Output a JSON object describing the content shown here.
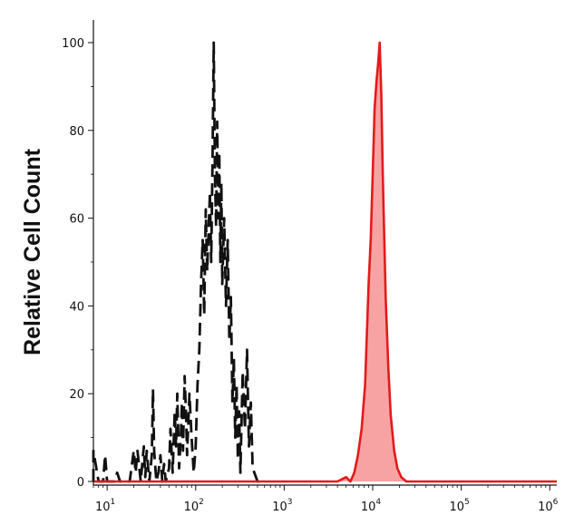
{
  "chart_data": {
    "type": "line",
    "title": "",
    "xlabel": "",
    "ylabel": "Relative Cell Count",
    "x_scale": "log",
    "xlim": [
      7,
      1200000
    ],
    "ylim": [
      0,
      100
    ],
    "x_ticks": [
      {
        "value": 10,
        "base": "10",
        "exp": "1"
      },
      {
        "value": 100,
        "base": "10",
        "exp": "2"
      },
      {
        "value": 1000,
        "base": "10",
        "exp": "3"
      },
      {
        "value": 10000,
        "base": "10",
        "exp": "4"
      },
      {
        "value": 100000,
        "base": "10",
        "exp": "5"
      },
      {
        "value": 1000000,
        "base": "10",
        "exp": "6"
      }
    ],
    "y_ticks": [
      0,
      20,
      40,
      60,
      80,
      100
    ],
    "grid": false,
    "colors": {
      "control": "#111111",
      "stained_line": "#e21b1b",
      "stained_fill": "#f7a3a3"
    },
    "series": [
      {
        "style": "dashed",
        "color": "#111111",
        "points": [
          [
            7,
            0
          ],
          [
            7,
            7
          ],
          [
            8,
            0
          ],
          [
            9,
            0
          ],
          [
            9.5,
            6
          ],
          [
            10,
            0
          ],
          [
            12,
            0
          ],
          [
            13,
            2
          ],
          [
            14,
            0
          ],
          [
            18,
            0
          ],
          [
            20,
            7
          ],
          [
            21,
            2
          ],
          [
            22,
            7
          ],
          [
            24,
            0
          ],
          [
            26,
            8
          ],
          [
            27,
            1
          ],
          [
            28,
            7
          ],
          [
            30,
            0
          ],
          [
            32,
            6
          ],
          [
            33,
            21
          ],
          [
            34,
            7
          ],
          [
            36,
            0
          ],
          [
            38,
            2
          ],
          [
            40,
            6
          ],
          [
            42,
            0
          ],
          [
            44,
            4
          ],
          [
            46,
            0
          ],
          [
            50,
            3
          ],
          [
            52,
            12
          ],
          [
            55,
            2
          ],
          [
            58,
            16
          ],
          [
            60,
            8
          ],
          [
            62,
            20
          ],
          [
            65,
            3
          ],
          [
            68,
            10
          ],
          [
            70,
            18
          ],
          [
            72,
            7
          ],
          [
            75,
            24
          ],
          [
            78,
            15
          ],
          [
            80,
            6
          ],
          [
            85,
            20
          ],
          [
            90,
            10
          ],
          [
            95,
            2
          ],
          [
            100,
            8
          ],
          [
            105,
            22
          ],
          [
            110,
            30
          ],
          [
            115,
            45
          ],
          [
            120,
            55
          ],
          [
            125,
            38
          ],
          [
            130,
            62
          ],
          [
            135,
            48
          ],
          [
            140,
            57
          ],
          [
            145,
            66
          ],
          [
            150,
            50
          ],
          [
            155,
            72
          ],
          [
            160,
            100
          ],
          [
            165,
            70
          ],
          [
            170,
            58
          ],
          [
            175,
            82
          ],
          [
            180,
            60
          ],
          [
            185,
            75
          ],
          [
            190,
            50
          ],
          [
            195,
            68
          ],
          [
            200,
            45
          ],
          [
            210,
            60
          ],
          [
            220,
            40
          ],
          [
            230,
            55
          ],
          [
            240,
            32
          ],
          [
            250,
            42
          ],
          [
            260,
            18
          ],
          [
            270,
            28
          ],
          [
            280,
            10
          ],
          [
            290,
            22
          ],
          [
            300,
            5
          ],
          [
            310,
            16
          ],
          [
            320,
            2
          ],
          [
            340,
            25
          ],
          [
            360,
            12
          ],
          [
            380,
            30
          ],
          [
            400,
            8
          ],
          [
            420,
            18
          ],
          [
            440,
            3
          ],
          [
            460,
            2
          ],
          [
            500,
            0
          ],
          [
            600,
            0
          ]
        ]
      },
      {
        "style": "filled",
        "color": "#e21b1b",
        "fill": "#f7a3a3",
        "points": [
          [
            7,
            0
          ],
          [
            4000,
            0
          ],
          [
            5000,
            1
          ],
          [
            5600,
            0
          ],
          [
            6200,
            2
          ],
          [
            6800,
            6
          ],
          [
            7500,
            12
          ],
          [
            8200,
            22
          ],
          [
            9000,
            45
          ],
          [
            9500,
            55
          ],
          [
            10000,
            70
          ],
          [
            10500,
            85
          ],
          [
            11000,
            91
          ],
          [
            11500,
            95
          ],
          [
            12000,
            100
          ],
          [
            12500,
            88
          ],
          [
            13000,
            70
          ],
          [
            14000,
            42
          ],
          [
            15000,
            26
          ],
          [
            16000,
            15
          ],
          [
            17500,
            7
          ],
          [
            19000,
            3
          ],
          [
            21000,
            1
          ],
          [
            24000,
            0
          ],
          [
            1200000,
            0
          ]
        ]
      }
    ]
  }
}
